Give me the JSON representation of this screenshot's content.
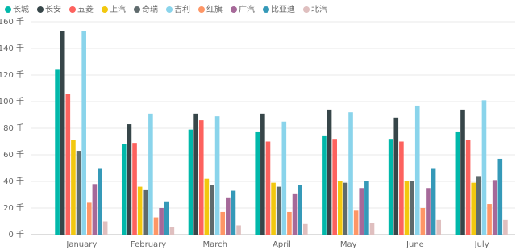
{
  "chart_data": {
    "type": "bar",
    "categories": [
      "January",
      "February",
      "March",
      "April",
      "May",
      "June",
      "July"
    ],
    "series": [
      {
        "name": "长城",
        "color": "#01b8aa",
        "values": [
          124,
          68,
          79,
          77,
          74,
          72,
          77
        ]
      },
      {
        "name": "长安",
        "color": "#374649",
        "values": [
          153,
          83,
          91,
          91,
          94,
          88,
          94
        ]
      },
      {
        "name": "五菱",
        "color": "#fd625e",
        "values": [
          106,
          69,
          86,
          70,
          72,
          70,
          71
        ]
      },
      {
        "name": "上汽",
        "color": "#f2c80f",
        "values": [
          71,
          36,
          42,
          39,
          40,
          40,
          39
        ]
      },
      {
        "name": "奇瑞",
        "color": "#5f6b6d",
        "values": [
          63,
          34,
          37,
          36,
          39,
          40,
          44
        ]
      },
      {
        "name": "吉利",
        "color": "#8ad4eb",
        "values": [
          153,
          91,
          89,
          85,
          92,
          97,
          101
        ]
      },
      {
        "name": "红旗",
        "color": "#fe9666",
        "values": [
          24,
          13,
          17,
          17,
          18,
          20,
          23
        ]
      },
      {
        "name": "广汽",
        "color": "#a66999",
        "values": [
          38,
          20,
          28,
          31,
          35,
          35,
          41
        ]
      },
      {
        "name": "比亚迪",
        "color": "#3599b8",
        "values": [
          50,
          25,
          33,
          37,
          40,
          50,
          57
        ]
      },
      {
        "name": "北汽",
        "color": "#dfbfbf",
        "values": [
          10,
          6,
          7,
          8,
          9,
          11,
          11
        ]
      }
    ],
    "ylim": [
      0,
      160
    ],
    "yticks": [
      {
        "value": 0,
        "label": "0 千"
      },
      {
        "value": 20,
        "label": "20 千"
      },
      {
        "value": 40,
        "label": "40 千"
      },
      {
        "value": 60,
        "label": "60 千"
      },
      {
        "value": 80,
        "label": "80 千"
      },
      {
        "value": 100,
        "label": "100 千"
      },
      {
        "value": 120,
        "label": "120 千"
      },
      {
        "value": 140,
        "label": "140 千"
      },
      {
        "value": 160,
        "label": "160 千"
      }
    ],
    "grid": true,
    "legend": "top-left"
  }
}
